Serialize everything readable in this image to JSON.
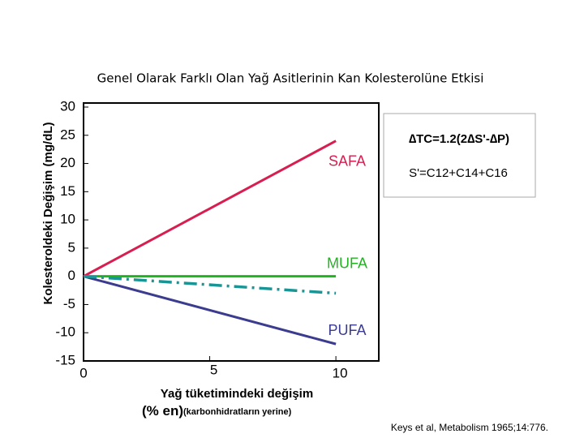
{
  "chart_data": {
    "type": "line",
    "title": "Genel Olarak Farklı Olan Yağ Asitlerinin Kan Kolesterolüne Etkisi",
    "y_label": "Kolesteroldeki Değişim (mg/dL)",
    "x_label": [
      "Yağ tüketimindeki değişim",
      "(% en)",
      "(karbonhidratların yerine)"
    ],
    "x": [
      0,
      10
    ],
    "xlim": [
      0,
      11.7
    ],
    "xticks": [
      0,
      5,
      10
    ],
    "ylim": [
      -15,
      30
    ],
    "yticks": [
      30,
      25,
      20,
      15,
      10,
      5,
      0,
      -5,
      -10,
      -15
    ],
    "series": [
      {
        "name": "SAFA",
        "color": "#d81e50",
        "values": [
          0,
          24
        ]
      },
      {
        "name": "MUFA",
        "color": "#22b322",
        "values": [
          0,
          0
        ]
      },
      {
        "name": "PUFA",
        "color": "#3b3b8f",
        "values": [
          0,
          -12
        ]
      },
      {
        "color": "#1a9494",
        "values": [
          0,
          -3
        ]
      }
    ],
    "annotations": {
      "formula": "∆TC=1.2(2∆S'-∆P)",
      "definition": "S'=C12+C14+C16",
      "citation": "Keys et al, Metabolism 1965;14:776."
    }
  }
}
